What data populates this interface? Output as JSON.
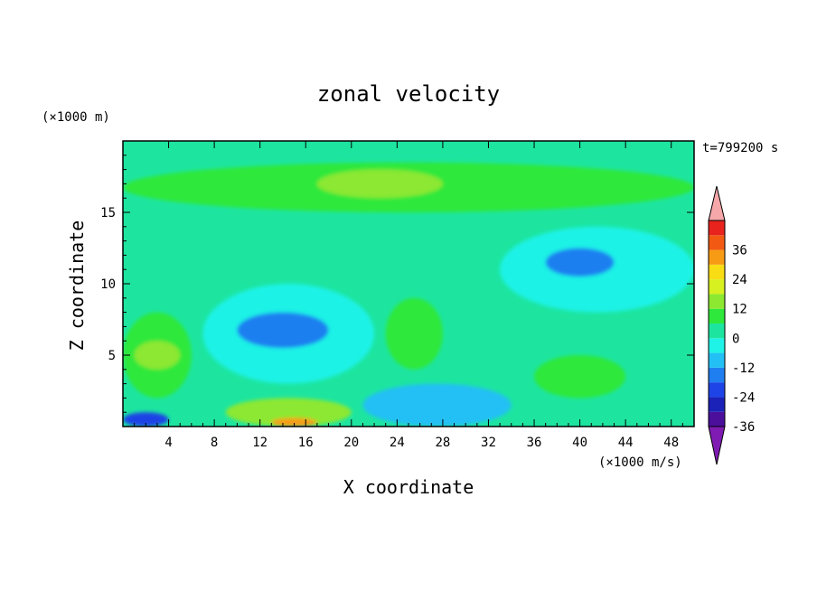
{
  "chart_data": {
    "type": "heatmap",
    "title": "zonal velocity",
    "xlabel": "X coordinate",
    "ylabel": "Z coordinate",
    "x_unit": "(×1000 m/s)",
    "y_unit": "(×1000 m)",
    "time_label": "t=799200 s",
    "xlim": [
      0,
      50
    ],
    "ylim": [
      0,
      20
    ],
    "x_ticks": [
      4,
      8,
      12,
      16,
      20,
      24,
      28,
      32,
      36,
      40,
      44,
      48
    ],
    "y_ticks": [
      5,
      10,
      15
    ],
    "colorbar": {
      "ticks": [
        36,
        24,
        12,
        0,
        -12,
        -24,
        -36
      ],
      "levels": [
        -42,
        -36,
        -30,
        -24,
        -18,
        -12,
        -6,
        0,
        6,
        12,
        18,
        24,
        30,
        36,
        42
      ],
      "colors": [
        "#7f1bb2",
        "#4b0f9c",
        "#1b22b8",
        "#1e43e6",
        "#1f7ff0",
        "#22c0f5",
        "#1ff2e6",
        "#1de5a0",
        "#2ee83b",
        "#8ce830",
        "#d7f01f",
        "#f8dd14",
        "#f89b14",
        "#f25a14",
        "#e8231e",
        "#f5a7aa"
      ]
    },
    "field_regions": [
      {
        "level": 0,
        "x": [
          0,
          50
        ],
        "z": [
          0,
          20
        ],
        "note": "background near-zero flow"
      },
      {
        "level": 6,
        "x": [
          0,
          50
        ],
        "z": [
          15,
          18.5
        ],
        "note": "upper band weak positive"
      },
      {
        "level": 12,
        "x": [
          17,
          28
        ],
        "z": [
          16,
          18
        ],
        "note": "upper positive core"
      },
      {
        "level": -6,
        "x": [
          7,
          22
        ],
        "z": [
          3,
          10
        ],
        "note": "negative region mid-left"
      },
      {
        "level": -18,
        "x": [
          10,
          18
        ],
        "z": [
          5.5,
          8
        ],
        "note": "negative core"
      },
      {
        "level": -6,
        "x": [
          33,
          50
        ],
        "z": [
          8,
          14
        ],
        "note": "negative region right"
      },
      {
        "level": -18,
        "x": [
          37,
          43
        ],
        "z": [
          10.5,
          12.5
        ],
        "note": "negative core right"
      },
      {
        "level": 6,
        "x": [
          0,
          6
        ],
        "z": [
          2,
          8
        ],
        "note": "positive left lobe"
      },
      {
        "level": 12,
        "x": [
          1,
          5
        ],
        "z": [
          4,
          6
        ],
        "note": "positive left core"
      },
      {
        "level": -24,
        "x": [
          0,
          4
        ],
        "z": [
          0,
          1
        ],
        "note": "strong negative bottom-left"
      },
      {
        "level": 12,
        "x": [
          9,
          20
        ],
        "z": [
          0,
          2
        ],
        "note": "positive bottom core"
      },
      {
        "level": 30,
        "x": [
          13,
          17
        ],
        "z": [
          0,
          0.6
        ],
        "note": "strongest positive"
      },
      {
        "level": 6,
        "x": [
          23,
          28
        ],
        "z": [
          4,
          9
        ],
        "note": "positive mid column"
      },
      {
        "level": 6,
        "x": [
          36,
          44
        ],
        "z": [
          2,
          5
        ],
        "note": "positive lower right"
      },
      {
        "level": -12,
        "x": [
          21,
          34
        ],
        "z": [
          0,
          3
        ],
        "note": "negative bottom center"
      }
    ]
  }
}
